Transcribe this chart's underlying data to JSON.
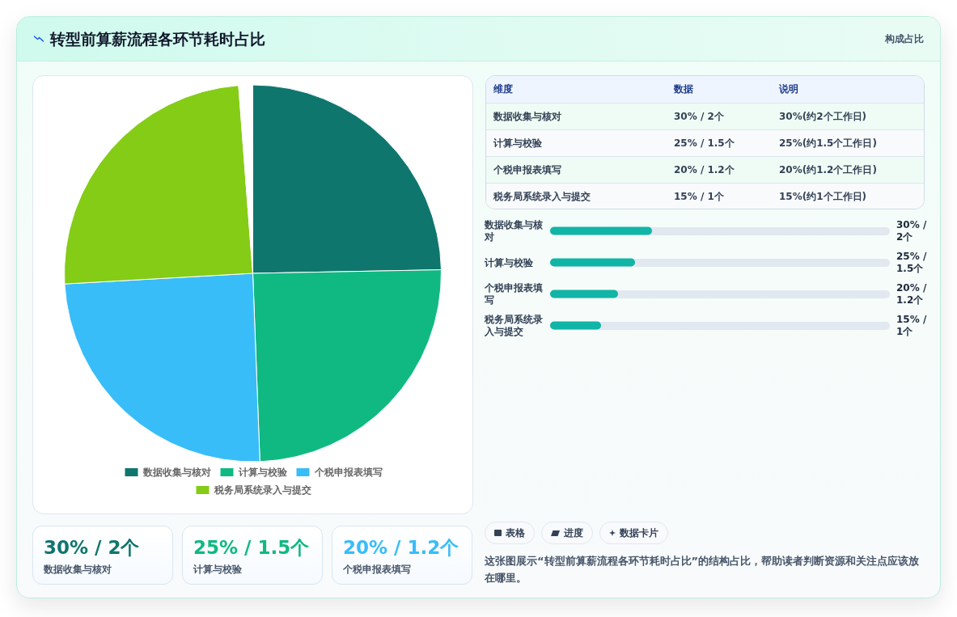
{
  "chart_data": [
    {
      "type": "other",
      "title": "转型前算薪流程各环节耗时占比",
      "annotations": [
        "构成占比"
      ]
    },
    {
      "type": "pie",
      "categories": [
        "数据收集与核对",
        "计算与校验",
        "个税申报表填写",
        "税务局系统录入与提交",
        null
      ],
      "values": [
        24.7,
        24.7,
        24.7,
        24.7,
        1.2
      ],
      "colors": [
        "#0f766e",
        "#10b981",
        "#38bdf8",
        "#84cc16",
        "#ffffff"
      ],
      "legend": "bottom"
    },
    {
      "type": "other",
      "annotations": [
        "维度",
        "数据",
        "说明",
        "数据收集与核对",
        "30% / 2个",
        "30%(约2个工作日)",
        "计算与校验",
        "25% / 1.5个",
        "25%(约1.5个工作日)",
        "个税申报表填写",
        "20% / 1.2个",
        "20%(约1.2个工作日)",
        "税务局系统录入与提交",
        "15% / 1个",
        "15%(约1个工作日)"
      ]
    },
    {
      "type": "bar",
      "orientation": "horizontal",
      "categories": [
        "数据收集与核对",
        "计算与校验",
        "个税申报表填写",
        "税务局系统录入与提交"
      ],
      "values": [
        30,
        25,
        20,
        15
      ],
      "color": "#10b5a6",
      "xlim": [
        0,
        100
      ],
      "tick_labels": "y",
      "value_labels": [
        "30% / 2个",
        "25% / 1.5个",
        "20% / 1.2个",
        "15% / 1个"
      ]
    },
    {
      "type": "other",
      "annotations": [
        "30% / 2个",
        "数据收集与核对",
        "25% / 1.5个",
        "计算与校验",
        "20% / 1.2个",
        "个税申报表填写"
      ]
    },
    {
      "type": "other",
      "annotations": [
        "表格",
        "进度",
        "数据卡片",
        "这张图展示“转型前算薪流程各环节耗时占比”的结构占比，帮助读者判断资源和关注点应该放在哪里。"
      ]
    }
  ]
}
